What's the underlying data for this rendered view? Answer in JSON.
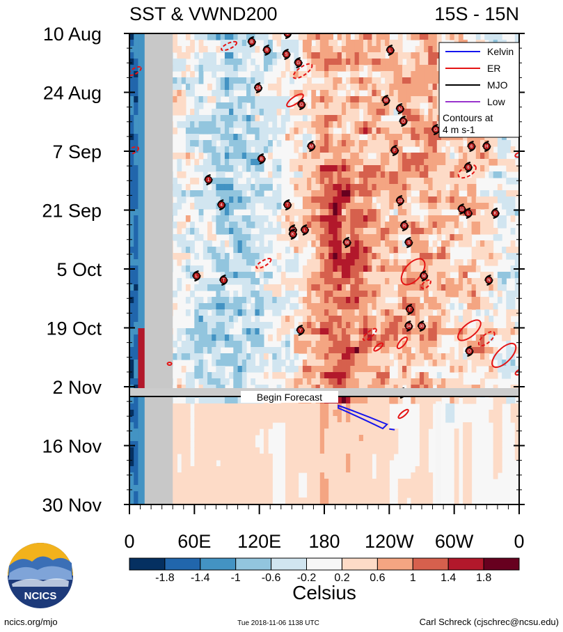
{
  "chart_data": {
    "type": "heatmap",
    "title_left": "SST & VWND200",
    "title_right": "15S - 15N",
    "y_tick_labels": [
      "10 Aug",
      "24 Aug",
      "7 Sep",
      "21 Sep",
      "5 Oct",
      "19 Oct",
      "2 Nov",
      "16 Nov",
      "30 Nov"
    ],
    "x_tick_labels": [
      "0",
      "60E",
      "120E",
      "180",
      "120W",
      "60W",
      "0"
    ],
    "x_range_deg": [
      0,
      360
    ],
    "colorbar": {
      "label": "Celsius",
      "levels": [
        -1.8,
        -1.4,
        -1,
        -0.6,
        -0.2,
        0.2,
        0.6,
        1,
        1.4,
        1.8
      ],
      "level_labels": [
        "-1.8",
        "-1.4",
        "-1",
        "-0.6",
        "-0.2",
        "0.2",
        "0.6",
        "1",
        "1.4",
        "1.8"
      ],
      "colors": [
        "#053061",
        "#2166ac",
        "#4393c3",
        "#92c5de",
        "#d1e5f0",
        "#f7f7f7",
        "#fddbc7",
        "#f4a582",
        "#d6604d",
        "#b2182b",
        "#67001f"
      ]
    },
    "legend": {
      "items": [
        {
          "name": "Kelvin",
          "color": "#1515ee"
        },
        {
          "name": "ER",
          "color": "#e41414"
        },
        {
          "name": "MJO",
          "color": "#000000"
        },
        {
          "name": "Low",
          "color": "#9933cc"
        }
      ],
      "note_line1": "Contours at",
      "note_line2": "4 m s-1"
    },
    "forecast_label": "Begin Forecast",
    "cyclones": [
      {
        "label": "B",
        "lon": 113,
        "day": 2
      },
      {
        "label": "L",
        "lon": 146,
        "day": 0
      },
      {
        "label": "R",
        "lon": 127,
        "day": 4
      },
      {
        "label": "S",
        "lon": 145,
        "day": 5
      },
      {
        "label": "G",
        "lon": 156,
        "day": 7
      },
      {
        "label": "L",
        "lon": 241,
        "day": 4
      },
      {
        "label": "24",
        "lon": 119,
        "day": 13
      },
      {
        "label": "M",
        "lon": 237,
        "day": 16
      },
      {
        "label": "N",
        "lon": 250,
        "day": 18
      },
      {
        "label": "G",
        "lon": 159,
        "day": 17
      },
      {
        "label": "O",
        "lon": 253,
        "day": 21
      },
      {
        "label": "G",
        "lon": 283,
        "day": 23
      },
      {
        "label": "M",
        "lon": 168,
        "day": 27
      },
      {
        "label": "F",
        "lon": 245,
        "day": 28
      },
      {
        "label": "B",
        "lon": 122,
        "day": 30
      },
      {
        "label": "6",
        "lon": 316,
        "day": 27
      },
      {
        "label": "H",
        "lon": 330,
        "day": 27
      },
      {
        "label": "6",
        "lon": 313,
        "day": 32
      },
      {
        "label": "1",
        "lon": 73,
        "day": 35
      },
      {
        "label": "4",
        "lon": 85,
        "day": 41
      },
      {
        "label": "T",
        "lon": 146,
        "day": 41
      },
      {
        "label": "19",
        "lon": 250,
        "day": 40
      },
      {
        "label": "11",
        "lon": 307,
        "day": 42
      },
      {
        "label": "L",
        "lon": 313,
        "day": 43
      },
      {
        "label": "K",
        "lon": 338,
        "day": 43
      },
      {
        "label": "20",
        "lon": 151,
        "day": 47
      },
      {
        "label": "L",
        "lon": 162,
        "day": 47
      },
      {
        "label": "K",
        "lon": 151,
        "day": 48
      },
      {
        "label": "R",
        "lon": 254,
        "day": 46
      },
      {
        "label": "W",
        "lon": 201,
        "day": 50
      },
      {
        "label": "S",
        "lon": 258,
        "day": 50
      },
      {
        "label": "L",
        "lon": 62,
        "day": 58
      },
      {
        "label": "T",
        "lon": 87,
        "day": 59
      },
      {
        "label": "M",
        "lon": 272,
        "day": 58
      },
      {
        "label": "N",
        "lon": 332,
        "day": 59
      },
      {
        "label": "T",
        "lon": 259,
        "day": 66
      },
      {
        "label": "34",
        "lon": 258,
        "day": 70
      },
      {
        "label": "30",
        "lon": 270,
        "day": 70
      },
      {
        "label": "Y",
        "lon": 158,
        "day": 71
      },
      {
        "label": "O",
        "lon": 314,
        "day": 76
      },
      {
        "label": "26",
        "lon": 252,
        "day": 86
      }
    ]
  },
  "footer": {
    "logo_text": "NCICS",
    "url": "ncics.org/mjo",
    "timestamp": "Tue 2018-11-06 1138 UTC",
    "credit": "Carl Schreck (cjschrec@ncsu.edu)"
  }
}
